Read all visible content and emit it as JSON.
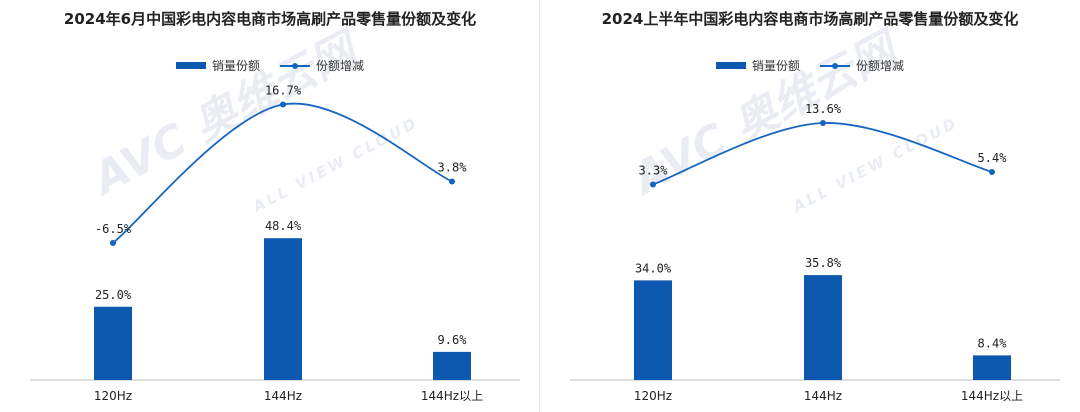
{
  "legend": {
    "bar_label": "销量份额",
    "line_label": "份额增减"
  },
  "colors": {
    "bar": "#0E59B0",
    "line": "#1565C0"
  },
  "watermark": {
    "brand": "AVC 奥维云网",
    "tagline": "ALL VIEW CLOUD"
  },
  "chart_data": [
    {
      "type": "bar",
      "title": "2024年6月中国彩电内容电商市场高刷产品零售量份额及变化",
      "categories": [
        "120Hz",
        "144Hz",
        "144Hz以上"
      ],
      "series": [
        {
          "name": "销量份额",
          "type": "bar",
          "values": [
            25.0,
            48.4,
            9.6
          ],
          "labels": [
            "25.0%",
            "48.4%",
            "9.6%"
          ]
        },
        {
          "name": "份额增减",
          "type": "line",
          "values": [
            -6.5,
            16.7,
            3.8
          ],
          "labels": [
            "-6.5%",
            "16.7%",
            "3.8%"
          ]
        }
      ],
      "legend_position": "top-center",
      "grid": false
    },
    {
      "type": "bar",
      "title": "2024上半年中国彩电内容电商市场高刷产品零售量份额及变化",
      "categories": [
        "120Hz",
        "144Hz",
        "144Hz以上"
      ],
      "series": [
        {
          "name": "销量份额",
          "type": "bar",
          "values": [
            34.0,
            35.8,
            8.4
          ],
          "labels": [
            "34.0%",
            "35.8%",
            "8.4%"
          ]
        },
        {
          "name": "份额增减",
          "type": "line",
          "values": [
            3.3,
            13.6,
            5.4
          ],
          "labels": [
            "3.3%",
            "13.6%",
            "5.4%"
          ]
        }
      ],
      "legend_position": "top-center",
      "grid": false
    }
  ]
}
